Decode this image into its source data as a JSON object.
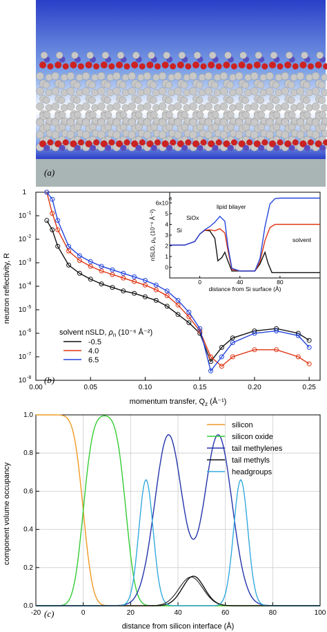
{
  "panel_a": {
    "tag": "(a)",
    "colors": {
      "solvent_top": "#2233bb",
      "substrate": "#a9b4b4",
      "tail": "#c8c8c8",
      "oxygen": "#cc2222",
      "phosphorus": "#5a4fc0"
    }
  },
  "chart_data": [
    {
      "id": "b",
      "type": "scatter",
      "tag": "(b)",
      "xlabel": "momentum transfer, Q",
      "xlabel_sub": "z",
      "xlabel_unit": " (Å⁻¹)",
      "ylabel": "neutron reflectivity,  R",
      "xlim": [
        0,
        0.26
      ],
      "ylim_log10": [
        -8,
        0
      ],
      "x_ticks": [
        "0.00",
        "0.05",
        "0.10",
        "0.15",
        "0.20",
        "0.25"
      ],
      "x_tick_values": [
        0,
        0.05,
        0.1,
        0.15,
        0.2,
        0.25
      ],
      "y_ticks": [
        "10",
        "10",
        "10",
        "10",
        "10",
        "10",
        "10",
        "10",
        "1"
      ],
      "y_tick_exps": [
        "-8",
        "-7",
        "-6",
        "-5",
        "-4",
        "-3",
        "-2",
        "-1",
        ""
      ],
      "y_tick_values": [
        -8,
        -7,
        -6,
        -5,
        -4,
        -3,
        -2,
        -1,
        0
      ],
      "legend": {
        "title": "solvent nSLD,",
        "title_symbol": "ρ",
        "title_symbol_sub": "n",
        "title_unit": " (10⁻⁶ Å⁻²)",
        "position": "lower-left"
      },
      "series": [
        {
          "name": "-0.5",
          "color": "#111111",
          "x": [
            0.01,
            0.015,
            0.02,
            0.03,
            0.04,
            0.05,
            0.06,
            0.07,
            0.08,
            0.09,
            0.1,
            0.11,
            0.12,
            0.13,
            0.14,
            0.15,
            0.16,
            0.17,
            0.18,
            0.2,
            0.22,
            0.24,
            0.25
          ],
          "log10R": [
            -1.2,
            -1.6,
            -2.3,
            -3.1,
            -3.45,
            -3.7,
            -3.9,
            -4.05,
            -4.2,
            -4.3,
            -4.45,
            -4.6,
            -4.85,
            -5.2,
            -5.55,
            -6.0,
            -7.2,
            -6.6,
            -6.2,
            -5.9,
            -5.8,
            -6.0,
            -6.3
          ]
        },
        {
          "name": "4.0",
          "color": "#dd3311",
          "x": [
            0.01,
            0.015,
            0.02,
            0.03,
            0.04,
            0.05,
            0.06,
            0.07,
            0.08,
            0.09,
            0.1,
            0.11,
            0.12,
            0.13,
            0.14,
            0.15,
            0.16,
            0.17,
            0.18,
            0.2,
            0.22,
            0.24,
            0.25
          ],
          "log10R": [
            0,
            -0.9,
            -1.6,
            -2.5,
            -2.9,
            -3.15,
            -3.35,
            -3.5,
            -3.65,
            -3.8,
            -3.95,
            -4.15,
            -4.4,
            -4.8,
            -5.3,
            -5.9,
            -7.0,
            -7.4,
            -7.0,
            -6.7,
            -6.7,
            -7.0,
            -7.3
          ]
        },
        {
          "name": "6.5",
          "color": "#2244dd",
          "x": [
            0.01,
            0.015,
            0.02,
            0.03,
            0.04,
            0.05,
            0.06,
            0.07,
            0.08,
            0.09,
            0.1,
            0.11,
            0.12,
            0.13,
            0.14,
            0.15,
            0.16,
            0.17,
            0.18,
            0.2,
            0.22,
            0.24,
            0.25
          ],
          "log10R": [
            0,
            -0.3,
            -1.2,
            -2.3,
            -2.7,
            -2.95,
            -3.15,
            -3.3,
            -3.45,
            -3.6,
            -3.75,
            -3.95,
            -4.2,
            -4.6,
            -5.1,
            -5.8,
            -7.6,
            -7.0,
            -6.4,
            -6.0,
            -5.9,
            -6.1,
            -6.6
          ]
        }
      ],
      "inset": {
        "type": "line",
        "xlabel": "distance from Si surface (Å)",
        "ylabel": "nSLD, ρ",
        "ylabel_sub": "n",
        "ylabel_unit": " (10⁻⁶ Å⁻²)",
        "xlim": [
          -30,
          120
        ],
        "ylim": [
          -1,
          7
        ],
        "x_ticks": [
          "0",
          "40",
          "80"
        ],
        "x_tick_values": [
          0,
          40,
          80
        ],
        "y_ticks": [
          "0",
          "1",
          "2",
          "3",
          "4",
          "5",
          "6x10"
        ],
        "y_top_exp": "-6",
        "y_tick_values": [
          0,
          1,
          2,
          3,
          4,
          5,
          6
        ],
        "annotations": [
          "Si",
          "SiOx",
          "lipid bilayer",
          "solvent"
        ],
        "series": [
          {
            "name": "-0.5",
            "color": "#111111",
            "x": [
              -30,
              -15,
              -5,
              0,
              5,
              10,
              15,
              18,
              22,
              25,
              28,
              32,
              40,
              55,
              60,
              65,
              68,
              72,
              80,
              120
            ],
            "y": [
              2.07,
              2.07,
              2.4,
              3.1,
              3.45,
              3.4,
              2.7,
              0.6,
              0.9,
              1.4,
              0.6,
              -0.35,
              -0.35,
              -0.35,
              0.3,
              1.4,
              0.4,
              -0.5,
              -0.5,
              -0.5
            ]
          },
          {
            "name": "4.0",
            "color": "#dd3311",
            "x": [
              -30,
              -15,
              -5,
              0,
              5,
              10,
              15,
              20,
              25,
              28,
              32,
              40,
              55,
              60,
              65,
              70,
              75,
              80,
              120
            ],
            "y": [
              2.07,
              2.07,
              2.4,
              3.1,
              3.45,
              3.5,
              3.4,
              3.6,
              3.2,
              1.6,
              -0.2,
              -0.35,
              -0.35,
              0.5,
              2.5,
              3.7,
              4.0,
              4.0,
              4.0
            ]
          },
          {
            "name": "6.5",
            "color": "#2244dd",
            "x": [
              -30,
              -15,
              -5,
              0,
              5,
              10,
              15,
              20,
              25,
              28,
              32,
              40,
              55,
              60,
              65,
              70,
              75,
              80,
              120
            ],
            "y": [
              2.07,
              2.07,
              2.4,
              3.1,
              3.5,
              3.8,
              4.2,
              4.75,
              4.3,
              2.0,
              -0.1,
              -0.35,
              -0.35,
              0.8,
              3.8,
              5.9,
              6.4,
              6.45,
              6.45
            ]
          }
        ]
      }
    },
    {
      "id": "c",
      "type": "line",
      "tag": "(c)",
      "xlabel": "distance from silicon interface (Å)",
      "ylabel": "component volume occupancy",
      "xlim": [
        -20,
        100
      ],
      "ylim": [
        0,
        1.0
      ],
      "x_ticks": [
        "-20",
        "0",
        "20",
        "40",
        "60",
        "80",
        "100"
      ],
      "x_tick_values": [
        -20,
        0,
        20,
        40,
        60,
        80,
        100
      ],
      "y_ticks": [
        "0.0",
        "0.2",
        "0.4",
        "0.6",
        "0.8",
        "1.0"
      ],
      "y_tick_values": [
        0,
        0.2,
        0.4,
        0.6,
        0.8,
        1.0
      ],
      "grid": true,
      "legend_position": "top-right",
      "series": [
        {
          "name": "silicon",
          "color": "#ee9922",
          "shape": "erfc",
          "center": 0,
          "width": 4.5,
          "amp": 1.0
        },
        {
          "name": "silicon oxide",
          "color": "#33cc33",
          "shape": "plateau",
          "left": 0,
          "right": 18,
          "width": 4.5,
          "amp": 1.0
        },
        {
          "name": "tail methylenes",
          "color": "#2233aa",
          "shape": "gauss2",
          "centers": [
            36,
            57
          ],
          "sigma": 5.8,
          "amp": 0.895
        },
        {
          "name": "tail methyls",
          "color": "#111111",
          "shape": "gauss",
          "center": 46.5,
          "sigma": 4.6,
          "amp": 0.155
        },
        {
          "name": "headgroups",
          "color": "#33aadd",
          "shape": "gauss2",
          "centers": [
            26.5,
            66.5
          ],
          "sigma": 3.0,
          "amp": 0.66
        }
      ]
    }
  ]
}
